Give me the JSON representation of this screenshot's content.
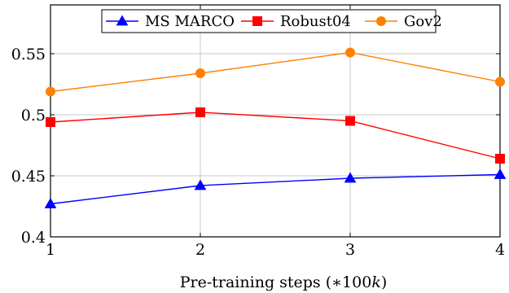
{
  "chart_data": {
    "type": "line",
    "x": [
      1,
      2,
      3,
      4
    ],
    "series": [
      {
        "name": "MS MARCO",
        "values": [
          0.427,
          0.442,
          0.448,
          0.451
        ],
        "color": "#0000ff",
        "marker": "triangle"
      },
      {
        "name": "Robust04",
        "values": [
          0.494,
          0.502,
          0.495,
          0.464
        ],
        "color": "#ff0000",
        "marker": "square"
      },
      {
        "name": "Gov2",
        "values": [
          0.519,
          0.534,
          0.551,
          0.527
        ],
        "color": "#ff8000",
        "marker": "circle"
      }
    ],
    "xlabel": "Pre-training steps (∗100k)",
    "xlabel_parts": {
      "text": "Pre-training steps (∗100",
      "italic": "k",
      "close": ")"
    },
    "ylabel": "",
    "xlim": [
      1,
      4
    ],
    "ylim": [
      0.4,
      0.59
    ],
    "xticks": [
      1,
      2,
      3,
      4
    ],
    "xtick_labels": [
      "1",
      "2",
      "3",
      "4"
    ],
    "yticks": [
      0.4,
      0.45,
      0.5,
      0.55
    ],
    "ytick_labels": [
      "0.4",
      "0.45",
      "0.5",
      "0.55"
    ],
    "grid": true,
    "legend_position": "top-center"
  }
}
